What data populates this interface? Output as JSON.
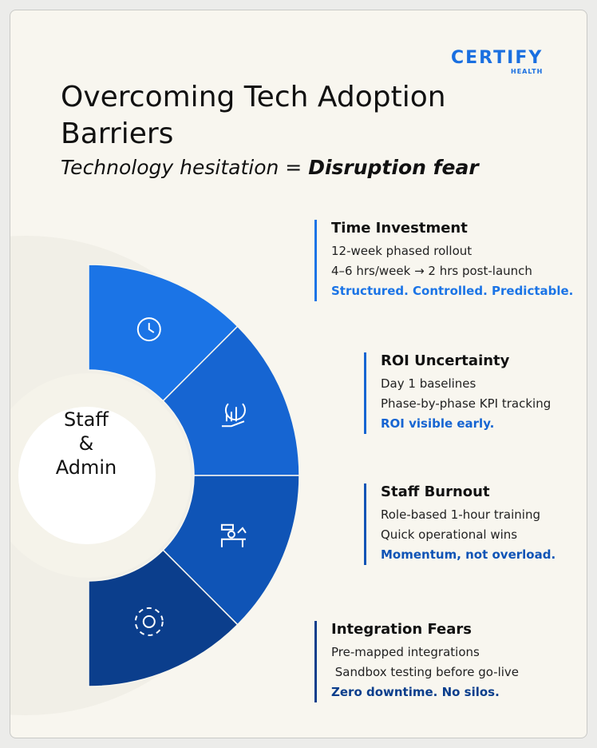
{
  "logo": {
    "name": "CERTIFY",
    "sub": "HEALTH"
  },
  "header": {
    "title": "Overcoming Tech Adoption Barriers",
    "subtitle_prefix": "Technology hesitation =",
    "subtitle_emphasis": "Disruption fear"
  },
  "center": {
    "lines": [
      "Staff",
      "&",
      "Admin"
    ]
  },
  "barriers": [
    {
      "title": "Time Investment",
      "lines": [
        "12-week phased rollout",
        "4–6 hrs/week → 2 hrs post-launch"
      ],
      "tagline": "Structured. Controlled. Predictable."
    },
    {
      "title": "ROI Uncertainty",
      "lines": [
        "Day 1 baselines",
        "Phase-by-phase KPI tracking"
      ],
      "tagline": "ROI visible early."
    },
    {
      "title": "Staff Burnout",
      "lines": [
        "Role-based 1-hour training",
        "Quick operational wins"
      ],
      "tagline": "Momentum, not overload."
    },
    {
      "title": "Integration Fears",
      "lines": [
        "Pre-mapped integrations",
        " Sandbox testing before go-live"
      ],
      "tagline": "Zero downtime. No silos."
    }
  ]
}
